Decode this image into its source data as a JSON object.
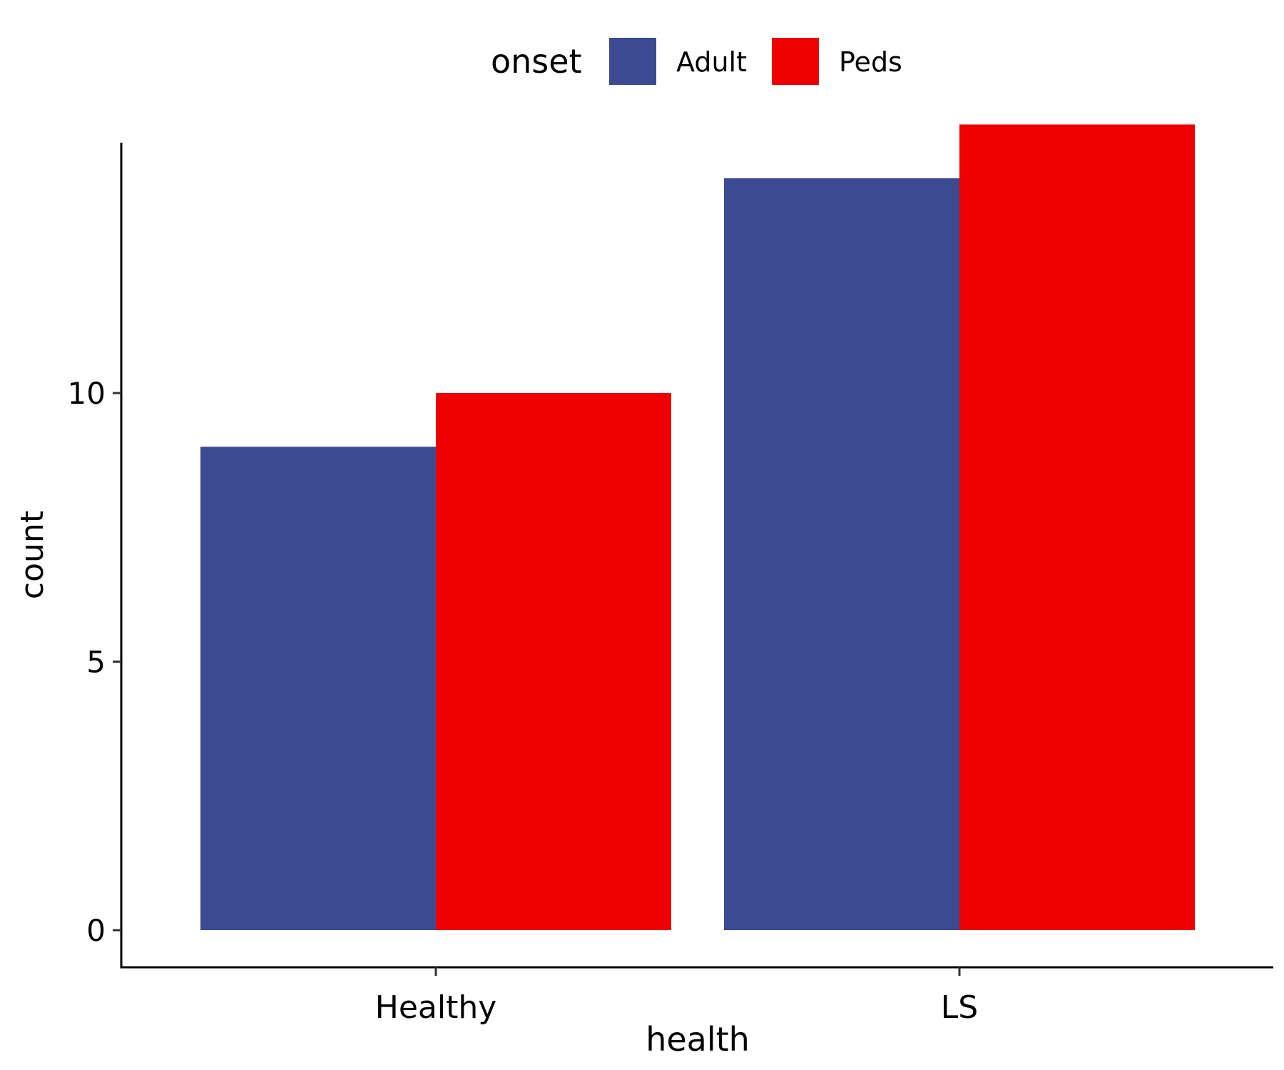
{
  "chart_data": {
    "type": "bar",
    "categories": [
      "Healthy",
      "LS"
    ],
    "series": [
      {
        "name": "Adult",
        "values": [
          9,
          14
        ],
        "color": "#3C4A92"
      },
      {
        "name": "Peds",
        "values": [
          10,
          15
        ],
        "color": "#EE0000"
      }
    ],
    "xlabel": "health",
    "ylabel": "count",
    "ylim": [
      0,
      15.7
    ],
    "yticks": [
      0,
      5,
      10
    ],
    "legend": {
      "title": "onset",
      "placement": "top"
    },
    "grid": false
  }
}
